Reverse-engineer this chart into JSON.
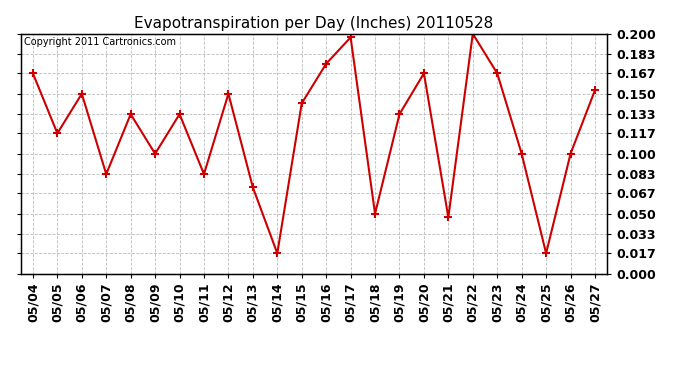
{
  "title": "Evapotranspiration per Day (Inches) 20110528",
  "copyright": "Copyright 2011 Cartronics.com",
  "dates": [
    "05/04",
    "05/05",
    "05/06",
    "05/07",
    "05/08",
    "05/09",
    "05/10",
    "05/11",
    "05/12",
    "05/13",
    "05/14",
    "05/15",
    "05/16",
    "05/17",
    "05/18",
    "05/19",
    "05/20",
    "05/21",
    "05/22",
    "05/23",
    "05/24",
    "05/25",
    "05/26",
    "05/27"
  ],
  "values": [
    0.167,
    0.117,
    0.15,
    0.083,
    0.133,
    0.1,
    0.133,
    0.083,
    0.15,
    0.072,
    0.017,
    0.142,
    0.175,
    0.197,
    0.05,
    0.133,
    0.167,
    0.047,
    0.2,
    0.167,
    0.1,
    0.017,
    0.1,
    0.153
  ],
  "line_color": "#cc0000",
  "marker": "+",
  "marker_color": "#cc0000",
  "marker_size": 6,
  "marker_linewidth": 1.5,
  "linewidth": 1.5,
  "ylim": [
    0.0,
    0.2
  ],
  "yticks": [
    0.0,
    0.017,
    0.033,
    0.05,
    0.067,
    0.083,
    0.1,
    0.117,
    0.133,
    0.15,
    0.167,
    0.183,
    0.2
  ],
  "bg_color": "#ffffff",
  "grid_color": "#bbbbbb",
  "title_fontsize": 11,
  "copyright_fontsize": 7,
  "tick_fontsize": 9,
  "ylabel_fontweight": "bold"
}
